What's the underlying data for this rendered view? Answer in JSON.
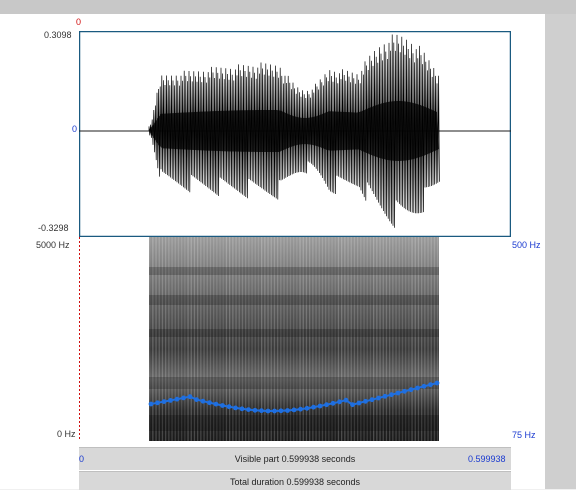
{
  "waveform": {
    "ymax_label": "0.3098",
    "zero_label": "0",
    "ymin_label": "-0.3298",
    "cursor_label": "0"
  },
  "spectrogram": {
    "fmax_label": "5000 Hz",
    "fmin_label": "0 Hz",
    "pitch_max_label": "500 Hz",
    "pitch_min_label": "75 Hz"
  },
  "timebar": {
    "start_label": "0",
    "visible_text": "Visible part 0.599938 seconds",
    "end_label": "0.599938",
    "total_text": "Total duration 0.599938 seconds"
  },
  "colors": {
    "pitch": "#1f6fe0",
    "wave": "#000000",
    "cursor": "#d01010",
    "frame": "#1a5a80"
  }
}
